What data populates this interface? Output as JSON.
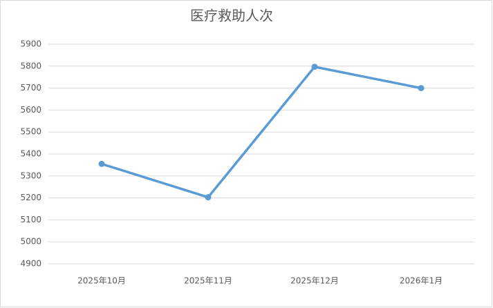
{
  "chart_data": {
    "type": "line",
    "title": "医疗救助人次",
    "categories": [
      "2025年10月",
      "2025年11月",
      "2025年12月",
      "2026年1月"
    ],
    "series": [
      {
        "name": "医疗救助人次",
        "color": "#5b9bd5",
        "values": [
          5355,
          5203,
          5797,
          5700
        ]
      }
    ],
    "ylim": [
      4900,
      5900
    ],
    "yticks": [
      4900,
      5000,
      5100,
      5200,
      5300,
      5400,
      5500,
      5600,
      5700,
      5800,
      5900
    ],
    "grid": true
  }
}
